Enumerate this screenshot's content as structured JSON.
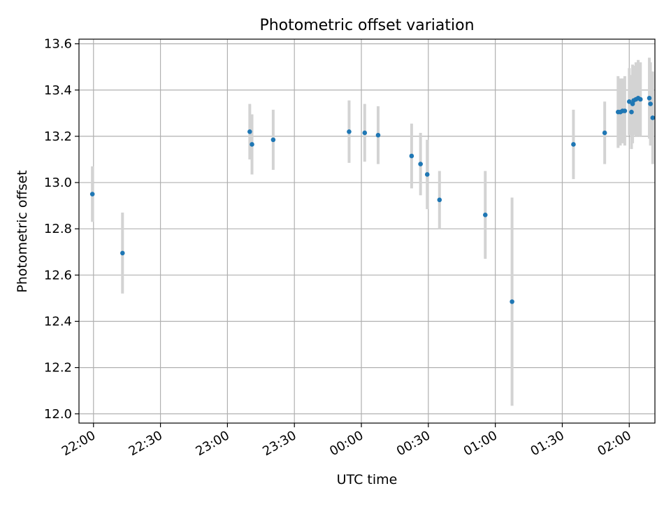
{
  "chart_data": {
    "type": "scatter",
    "title": "Photometric offset variation",
    "xlabel": "UTC time",
    "ylabel": "Photometric offset",
    "grid": true,
    "legend": "none",
    "xlim": [
      "21:53:30",
      "02:11:30"
    ],
    "ylim": [
      11.96,
      13.62
    ],
    "x_ticks": [
      "22:00",
      "22:30",
      "23:00",
      "23:30",
      "00:00",
      "00:30",
      "01:00",
      "01:30",
      "02:00"
    ],
    "y_ticks": [
      "12.0",
      "12.2",
      "12.4",
      "12.6",
      "12.8",
      "13.0",
      "13.2",
      "13.4",
      "13.6"
    ],
    "colors": {
      "point": "#1f77b4",
      "errorbar": "#d3d3d3",
      "grid": "#b0b0b0"
    },
    "points": [
      {
        "x": "21:59:30",
        "y": 12.95,
        "err": 0.12
      },
      {
        "x": "22:13:00",
        "y": 12.695,
        "err": 0.175
      },
      {
        "x": "23:10:00",
        "y": 13.22,
        "err": 0.12
      },
      {
        "x": "23:11:00",
        "y": 13.165,
        "err": 0.13
      },
      {
        "x": "23:20:30",
        "y": 13.185,
        "err": 0.13
      },
      {
        "x": "23:54:30",
        "y": 13.22,
        "err": 0.135
      },
      {
        "x": "00:01:30",
        "y": 13.215,
        "err": 0.125
      },
      {
        "x": "00:07:30",
        "y": 13.205,
        "err": 0.125
      },
      {
        "x": "00:22:30",
        "y": 13.115,
        "err": 0.14
      },
      {
        "x": "00:26:30",
        "y": 13.08,
        "err": 0.135
      },
      {
        "x": "00:29:30",
        "y": 13.035,
        "err": 0.15
      },
      {
        "x": "00:35:00",
        "y": 12.925,
        "err": 0.125
      },
      {
        "x": "00:55:30",
        "y": 12.86,
        "err": 0.19
      },
      {
        "x": "01:07:30",
        "y": 12.485,
        "err": 0.45
      },
      {
        "x": "01:35:00",
        "y": 13.165,
        "err": 0.15
      },
      {
        "x": "01:49:00",
        "y": 13.215,
        "err": 0.135
      },
      {
        "x": "01:55:00",
        "y": 13.305,
        "err": 0.155
      },
      {
        "x": "01:56:00",
        "y": 13.305,
        "err": 0.145
      },
      {
        "x": "01:57:00",
        "y": 13.31,
        "err": 0.14
      },
      {
        "x": "01:58:00",
        "y": 13.31,
        "err": 0.15
      },
      {
        "x": "02:00:00",
        "y": 13.35,
        "err": 0.145
      },
      {
        "x": "02:01:00",
        "y": 13.305,
        "err": 0.16
      },
      {
        "x": "02:01:30",
        "y": 13.34,
        "err": 0.17
      },
      {
        "x": "02:02:00",
        "y": 13.355,
        "err": 0.15
      },
      {
        "x": "02:03:00",
        "y": 13.36,
        "err": 0.16
      },
      {
        "x": "02:04:00",
        "y": 13.365,
        "err": 0.165
      },
      {
        "x": "02:05:00",
        "y": 13.36,
        "err": 0.16
      },
      {
        "x": "02:09:00",
        "y": 13.365,
        "err": 0.175
      },
      {
        "x": "02:09:30",
        "y": 13.34,
        "err": 0.18
      },
      {
        "x": "02:10:30",
        "y": 13.28,
        "err": 0.2
      }
    ]
  }
}
